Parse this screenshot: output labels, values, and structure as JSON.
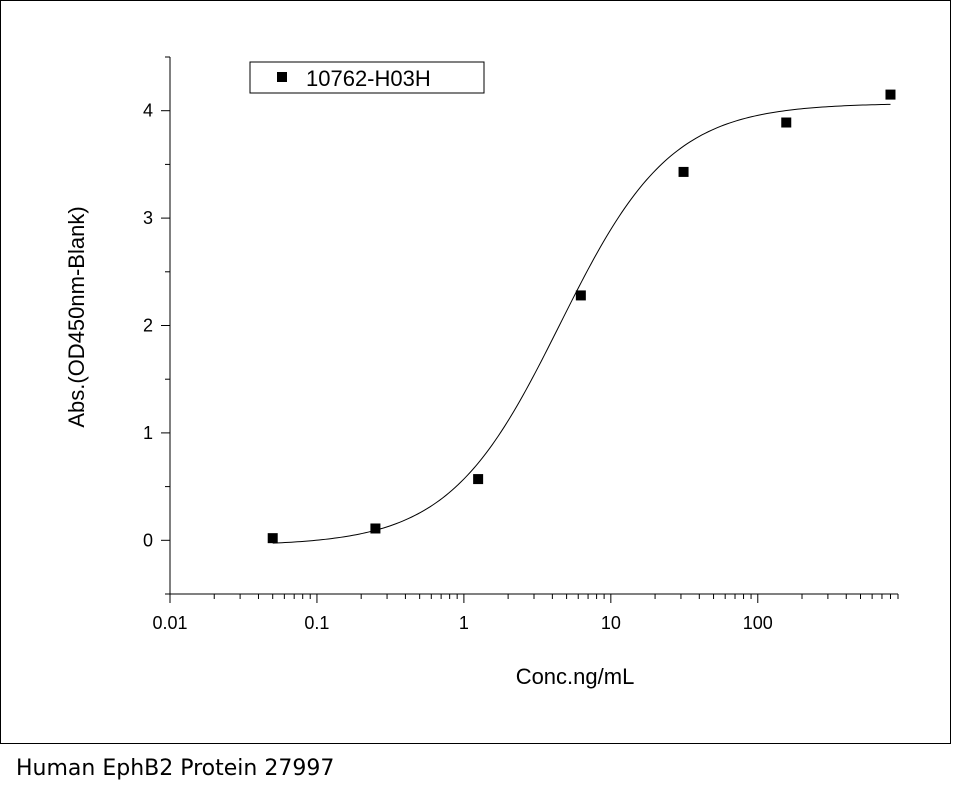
{
  "caption": "Human EphB2 Protein 27997",
  "chart_data": {
    "type": "scatter",
    "xlabel": "Conc.ng/mL",
    "ylabel": "Abs.(OD450nm-Blank)",
    "xscale": "log",
    "xlim": [
      0.01,
      900
    ],
    "ylim": [
      -0.5,
      4.5
    ],
    "xticks": [
      0.01,
      0.1,
      1,
      10,
      100
    ],
    "xtick_labels": [
      "0.01",
      "0.1",
      "1",
      "10",
      "100"
    ],
    "yticks": [
      0,
      1,
      2,
      3,
      4
    ],
    "ytick_labels": [
      "0",
      "1",
      "2",
      "3",
      "4"
    ],
    "legend": {
      "position": "top-left",
      "boxed": true
    },
    "series": [
      {
        "name": "10762-H03H",
        "marker": "square",
        "color": "#000000",
        "x": [
          0.05,
          0.25,
          1.25,
          6.25,
          31.25,
          156.25,
          800
        ],
        "y": [
          0.02,
          0.11,
          0.57,
          2.28,
          3.43,
          3.89,
          4.15
        ]
      }
    ],
    "fit": {
      "type": "4PL",
      "bottom": -0.05,
      "top": 4.07,
      "ec50": 4.5,
      "hill": 1.15,
      "x_range": [
        0.05,
        800
      ],
      "color": "#000000"
    }
  }
}
